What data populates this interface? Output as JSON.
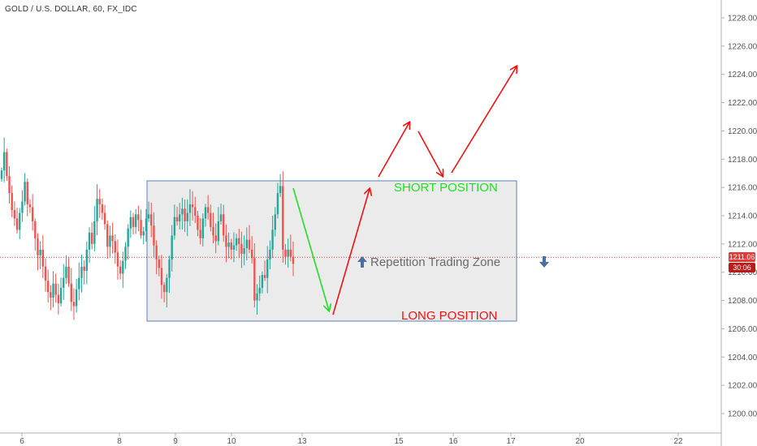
{
  "header": {
    "symbol": "GOLD / U.S. DOLLAR, 60, FX_IDC"
  },
  "badges": {
    "last_price": "1211.06",
    "countdown": "30:06"
  },
  "colors": {
    "up": "#26a69a",
    "down": "#ef5350",
    "last_price_line": "#e53935",
    "countdown_bg": "#b71c1c",
    "zone_fill": "#ebebeb",
    "zone_stroke": "#5b7fb5",
    "short_text": "#22dd22",
    "long_text": "#ee1111",
    "zone_text": "#6a6a6a",
    "zone_arrow": "#4a6fa0",
    "green_arrow": "#22dd22",
    "red_arrow": "#ee1111"
  },
  "annotations": {
    "short_position": "SHORT POSITION",
    "long_position": "LONG POSITION",
    "zone_label": "Repetition Trading Zone"
  },
  "chart_data": {
    "type": "candlestick",
    "title": "GOLD / U.S. DOLLAR, 60, FX_IDC",
    "ylim": [
      1199,
      1229
    ],
    "y_ticks": [
      1200,
      1202,
      1204,
      1206,
      1208,
      1210,
      1212,
      1214,
      1216,
      1218,
      1220,
      1222,
      1224,
      1226,
      1228
    ],
    "y_tick_labels": [
      "1200.00",
      "1202.00",
      "1204.00",
      "1206.00",
      "1208.00",
      "1210.00",
      "1212.00",
      "1214.00",
      "1216.00",
      "1218.00",
      "1220.00",
      "1222.00",
      "1224.00",
      "1226.00",
      "1228.00"
    ],
    "x_labels": [
      "6",
      "8",
      "9",
      "10",
      "13",
      "15",
      "16",
      "17",
      "20",
      "22"
    ],
    "last_price": 1211.06,
    "zone": {
      "high": 1216.4,
      "low": 1206.6
    },
    "closes": [
      1217.2,
      1218.5,
      1216.8,
      1215.6,
      1214.4,
      1213.8,
      1213.0,
      1214.2,
      1215.0,
      1216.4,
      1214.8,
      1214.6,
      1213.6,
      1212.4,
      1211.2,
      1211.6,
      1210.4,
      1209.4,
      1208.6,
      1208.2,
      1209.2,
      1208.4,
      1207.8,
      1208.9,
      1209.6,
      1210.4,
      1209.2,
      1207.9,
      1207.6,
      1208.8,
      1209.6,
      1210.4,
      1210.1,
      1211.6,
      1212.8,
      1212.0,
      1213.6,
      1215.2,
      1214.8,
      1214.2,
      1213.4,
      1211.8,
      1212.6,
      1212.2,
      1211.4,
      1210.4,
      1209.9,
      1210.8,
      1211.8,
      1213.1,
      1213.9,
      1213.2,
      1214.1,
      1213.7,
      1212.6,
      1212.9,
      1213.8,
      1214.1,
      1213.3,
      1211.9,
      1210.9,
      1210.3,
      1209.1,
      1208.6,
      1209.6,
      1210.9,
      1212.6,
      1213.9,
      1213.6,
      1214.1,
      1214.5,
      1213.6,
      1214.2,
      1214.8,
      1214.6,
      1214.0,
      1213.0,
      1212.4,
      1213.8,
      1214.6,
      1214.2,
      1213.2,
      1212.6,
      1212.2,
      1213.6,
      1214.1,
      1212.6,
      1211.8,
      1212.1,
      1211.6,
      1211.9,
      1212.4,
      1212.0,
      1211.3,
      1211.7,
      1212.3,
      1211.6,
      1211.0,
      1208.0,
      1208.5,
      1208.9,
      1209.8,
      1209.6,
      1210.9,
      1211.6,
      1213.0,
      1214.1,
      1215.6,
      1216.1,
      1211.6,
      1211.1,
      1211.6,
      1211.1,
      1210.6
    ]
  }
}
